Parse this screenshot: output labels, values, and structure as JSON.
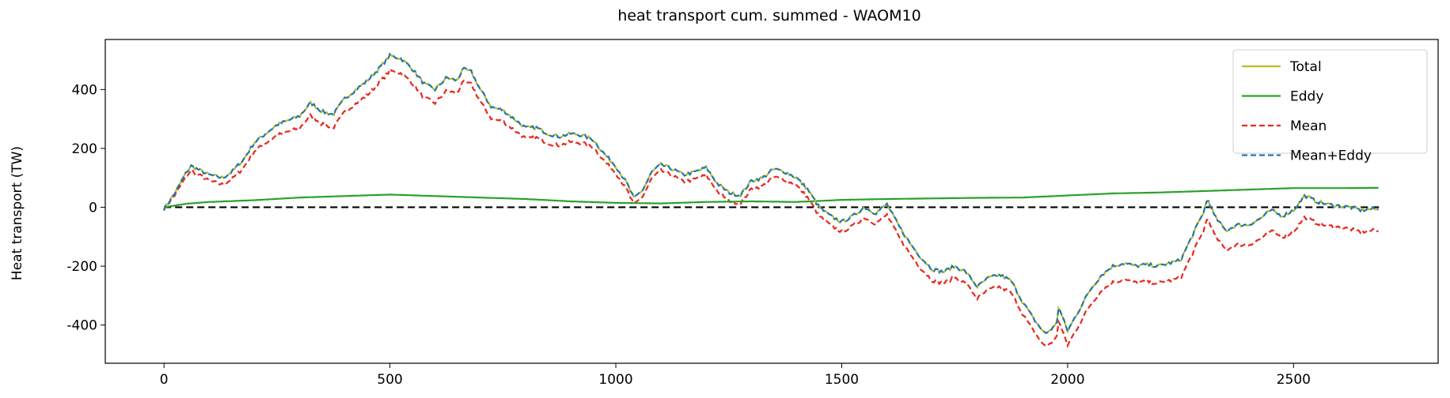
{
  "chart_data": {
    "type": "line",
    "title": "heat transport cum. summed - WAOM10",
    "xlabel": "",
    "ylabel": "Heat transport (TW)",
    "xlim": [
      -130,
      2820
    ],
    "ylim": [
      -530,
      570
    ],
    "xticks": [
      0,
      500,
      1000,
      1500,
      2000,
      2500
    ],
    "yticks": [
      -400,
      -200,
      0,
      200,
      400
    ],
    "legend_position": "upper-right",
    "legend": [
      "Total",
      "Eddy",
      "Mean",
      "Mean+Eddy"
    ],
    "colors": {
      "Total": "#bcbd22",
      "Eddy": "#2ca02c",
      "Mean": "#e8281e",
      "Mean+Eddy": "#1f77b4",
      "zero": "#000000"
    },
    "x": [
      0,
      25,
      50,
      60,
      80,
      100,
      130,
      150,
      175,
      200,
      225,
      250,
      275,
      300,
      325,
      350,
      375,
      400,
      425,
      450,
      475,
      500,
      525,
      550,
      575,
      600,
      625,
      650,
      660,
      680,
      700,
      725,
      750,
      775,
      800,
      825,
      850,
      875,
      900,
      925,
      950,
      975,
      1000,
      1025,
      1040,
      1060,
      1080,
      1100,
      1125,
      1150,
      1175,
      1200,
      1225,
      1250,
      1275,
      1300,
      1325,
      1350,
      1375,
      1400,
      1425,
      1450,
      1475,
      1500,
      1525,
      1550,
      1575,
      1600,
      1625,
      1650,
      1675,
      1700,
      1725,
      1750,
      1775,
      1800,
      1825,
      1850,
      1875,
      1900,
      1925,
      1950,
      1975,
      1980,
      2000,
      2025,
      2050,
      2075,
      2100,
      2125,
      2150,
      2175,
      2200,
      2225,
      2250,
      2275,
      2300,
      2310,
      2325,
      2350,
      2375,
      2400,
      2425,
      2450,
      2475,
      2500,
      2525,
      2550,
      2575,
      2600,
      2625,
      2650,
      2675,
      2690
    ],
    "mean_plus_eddy": [
      -5,
      50,
      120,
      140,
      125,
      110,
      100,
      120,
      160,
      220,
      250,
      280,
      295,
      310,
      355,
      325,
      315,
      370,
      400,
      430,
      470,
      515,
      505,
      470,
      420,
      400,
      440,
      430,
      470,
      460,
      400,
      340,
      330,
      300,
      270,
      270,
      250,
      240,
      250,
      245,
      230,
      180,
      140,
      80,
      30,
      60,
      120,
      145,
      130,
      110,
      120,
      135,
      80,
      50,
      40,
      90,
      100,
      130,
      120,
      100,
      60,
      0,
      -30,
      -50,
      -30,
      0,
      -20,
      10,
      -60,
      -120,
      -170,
      -210,
      -220,
      -200,
      -220,
      -270,
      -240,
      -230,
      -250,
      -320,
      -380,
      -430,
      -400,
      -340,
      -420,
      -350,
      -280,
      -230,
      -200,
      -190,
      -200,
      -195,
      -200,
      -190,
      -180,
      -100,
      -20,
      30,
      -30,
      -80,
      -60,
      -60,
      -40,
      -10,
      -30,
      -10,
      40,
      20,
      10,
      5,
      0,
      -10,
      -5,
      -10
    ],
    "eddy": {
      "x": [
        0,
        50,
        100,
        200,
        300,
        400,
        500,
        600,
        700,
        800,
        900,
        1000,
        1100,
        1200,
        1300,
        1400,
        1500,
        1600,
        1700,
        1800,
        1900,
        2000,
        2100,
        2200,
        2300,
        2400,
        2500,
        2600,
        2690
      ],
      "y": [
        0,
        12,
        18,
        24,
        33,
        38,
        43,
        38,
        33,
        28,
        20,
        15,
        13,
        18,
        20,
        18,
        25,
        28,
        30,
        32,
        33,
        40,
        47,
        50,
        55,
        60,
        65,
        65,
        66
      ]
    },
    "notes_series": {
      "total": "equal to mean_plus_eddy",
      "mean": "mean_plus_eddy minus eddy"
    }
  }
}
